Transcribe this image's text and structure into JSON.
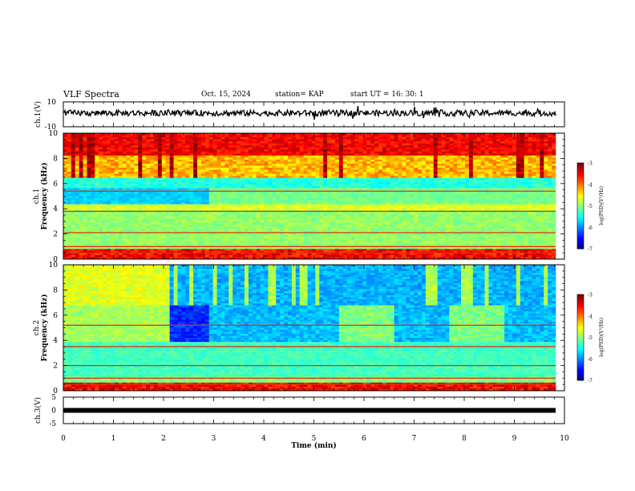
{
  "header": {
    "title": "VLF Spectra",
    "date": "Oct. 15, 2024",
    "station": "station= KAP",
    "start": "start  UT =   16: 30: 1"
  },
  "chart_data": [
    {
      "type": "line",
      "title": "VLF Spectra",
      "ylabel": "ch.1(V)",
      "xlabel": "",
      "ylim": [
        -10,
        10
      ],
      "yticks": [
        "10",
        "-10"
      ],
      "xlim": [
        0,
        10
      ],
      "series_color": "#000000",
      "note": "dense voltage waveform fluctuating mostly between about -2 and +4 V"
    },
    {
      "type": "heatmap",
      "ylabel": "ch.1  Frequency (kHz)",
      "xlim": [
        0,
        10
      ],
      "ylim": [
        0,
        10
      ],
      "yticks": [
        "0",
        "2",
        "4",
        "6",
        "8",
        "10"
      ],
      "colorbar": {
        "label": "log(PSD)(V²/Hz)",
        "ticks": [
          "-3",
          "-4",
          "-5",
          "-6",
          "-7"
        ],
        "range": [
          -7,
          -3
        ]
      }
    },
    {
      "type": "heatmap",
      "ylabel": "ch.2  Frequency (kHz)",
      "xlim": [
        0,
        10
      ],
      "ylim": [
        0,
        10
      ],
      "yticks": [
        "0",
        "2",
        "4",
        "6",
        "8",
        "10"
      ],
      "colorbar": {
        "label": "log(PSD)(V²/Hz)",
        "ticks": [
          "-3",
          "-4",
          "-5",
          "-6",
          "-7"
        ],
        "range": [
          -7,
          -3
        ]
      }
    },
    {
      "type": "line",
      "ylabel": "ch.3(V)",
      "xlabel": "Time  (min)",
      "ylim": [
        -5,
        5
      ],
      "yticks": [
        "5",
        "0",
        "-5"
      ],
      "xlim": [
        0,
        10
      ],
      "xticks": [
        "0",
        "1",
        "2",
        "3",
        "4",
        "5",
        "6",
        "7",
        "8",
        "9",
        "10"
      ],
      "series_color": "#000000",
      "note": "thick near-constant band at about 0 V"
    }
  ]
}
